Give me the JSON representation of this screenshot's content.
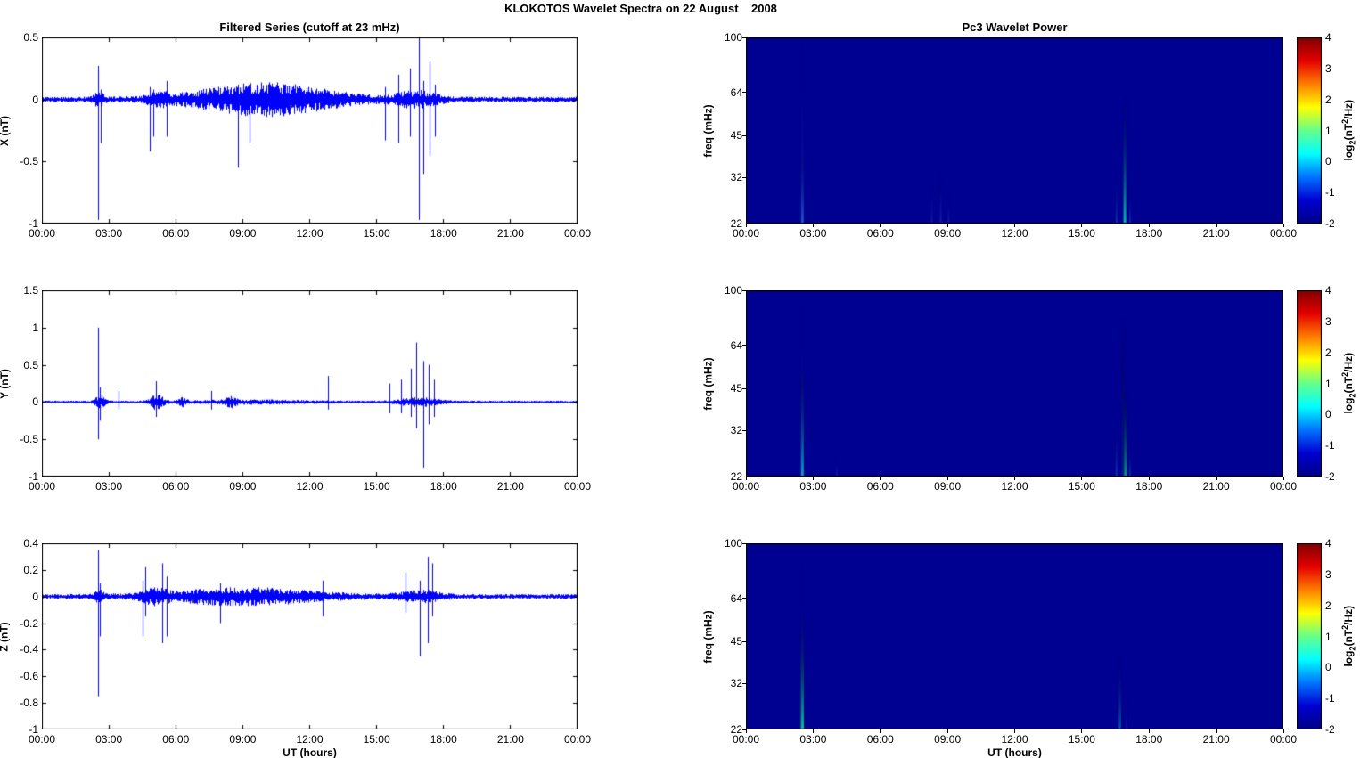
{
  "figure": {
    "title": "KLOKOTOS Wavelet Spectra on 22 August    2008",
    "xlabel": "UT (hours)",
    "colorbar_label": {
      "fn": "log",
      "sub": "2",
      "open": "(nT",
      "sup": "2",
      "close": "/Hz)"
    },
    "line_color": "#0000ff",
    "heatmap_background": "#000091"
  },
  "chart_data": [
    {
      "type": "line",
      "title": "Filtered Series (cutoff at 23 mHz)",
      "ylabel": "X (nT)",
      "ylim": [
        -1,
        0.5
      ],
      "yticks": [
        "0.5",
        "0",
        "-0.5",
        "-1"
      ],
      "xticks": [
        "00:00",
        "03:00",
        "06:00",
        "09:00",
        "12:00",
        "15:00",
        "18:00",
        "21:00",
        "00:00"
      ],
      "x_range_hours": [
        0,
        24
      ],
      "line_color": "#0000ff",
      "noise_base": 0.022,
      "bursts": [
        {
          "t0": 5.2,
          "t1": 13.8,
          "peak": 10.0,
          "amp": 0.12
        },
        {
          "t0": 15.3,
          "t1": 17.9,
          "peak": 16.8,
          "amp": 0.055
        },
        {
          "t0": 2.3,
          "t1": 2.9,
          "peak": 2.55,
          "amp": 0.05
        },
        {
          "t0": 4.6,
          "t1": 5.9,
          "peak": 5.2,
          "amp": 0.04
        }
      ],
      "spikes": [
        {
          "t": 2.52,
          "up": 0.27,
          "down": -0.97
        },
        {
          "t": 2.62,
          "up": 0.08,
          "down": -0.35
        },
        {
          "t": 4.85,
          "up": 0.1,
          "down": -0.42
        },
        {
          "t": 5.0,
          "up": 0.08,
          "down": -0.3
        },
        {
          "t": 5.6,
          "up": 0.15,
          "down": -0.3
        },
        {
          "t": 8.8,
          "up": 0.12,
          "down": -0.55
        },
        {
          "t": 9.3,
          "up": 0.1,
          "down": -0.35
        },
        {
          "t": 15.4,
          "up": 0.1,
          "down": -0.33
        },
        {
          "t": 16.0,
          "up": 0.2,
          "down": -0.35
        },
        {
          "t": 16.5,
          "up": 0.25,
          "down": -0.3
        },
        {
          "t": 16.92,
          "up": 0.5,
          "down": -0.97
        },
        {
          "t": 17.1,
          "up": 0.15,
          "down": -0.6
        },
        {
          "t": 17.4,
          "up": 0.3,
          "down": -0.45
        },
        {
          "t": 17.65,
          "up": 0.12,
          "down": -0.3
        }
      ]
    },
    {
      "type": "heatmap",
      "title": "Pc3 Wavelet Power",
      "ylabel": "freq (mHz)",
      "ylim": [
        22,
        100
      ],
      "yscale": "log2",
      "yticks": [
        "100",
        "64",
        "45",
        "32",
        "22"
      ],
      "xticks": [
        "00:00",
        "03:00",
        "06:00",
        "09:00",
        "12:00",
        "15:00",
        "18:00",
        "21:00",
        "00:00"
      ],
      "x_range_hours": [
        0,
        24
      ],
      "background_value": -2,
      "background_color": "#000091",
      "colorbar": {
        "range": [
          -2,
          4
        ],
        "ticks": [
          "4",
          "3",
          "2",
          "1",
          "0",
          "-1",
          "-2"
        ],
        "colors": [
          "#800000",
          "#e40000",
          "#ff7d00",
          "#ffff00",
          "#66ff8c",
          "#00ffff",
          "#0073ff",
          "#0000d0",
          "#000085"
        ]
      },
      "streaks": [
        {
          "t": 2.52,
          "f_top": 95,
          "color": "#2060ff",
          "alpha": 0.28,
          "w": 1.5
        },
        {
          "t": 2.52,
          "f_top": 40,
          "color": "#30a0ff",
          "alpha": 0.45,
          "w": 1.5
        },
        {
          "t": 8.3,
          "f_top": 30,
          "color": "#2060ff",
          "alpha": 0.3,
          "w": 1
        },
        {
          "t": 8.7,
          "f_top": 33,
          "color": "#2060ff",
          "alpha": 0.35,
          "w": 1
        },
        {
          "t": 9.05,
          "f_top": 28,
          "color": "#2060ff",
          "alpha": 0.3,
          "w": 1
        },
        {
          "t": 16.55,
          "f_top": 33,
          "color": "#2080ff",
          "alpha": 0.4,
          "w": 1
        },
        {
          "t": 16.92,
          "f_top": 62,
          "color": "#00e0b0",
          "alpha": 0.85,
          "w": 1.5
        },
        {
          "t": 17.15,
          "f_top": 30,
          "color": "#2080ff",
          "alpha": 0.35,
          "w": 1
        }
      ]
    },
    {
      "type": "line",
      "ylabel": "Y (nT)",
      "ylim": [
        -1,
        1.5
      ],
      "yticks": [
        "1.5",
        "1",
        "0.5",
        "0",
        "-0.5",
        "-1"
      ],
      "xticks": [
        "00:00",
        "03:00",
        "06:00",
        "09:00",
        "12:00",
        "15:00",
        "18:00",
        "21:00",
        "00:00"
      ],
      "x_range_hours": [
        0,
        24
      ],
      "line_color": "#0000ff",
      "noise_base": 0.018,
      "bursts": [
        {
          "t0": 2.3,
          "t1": 2.9,
          "peak": 2.6,
          "amp": 0.08
        },
        {
          "t0": 4.8,
          "t1": 5.6,
          "peak": 5.15,
          "amp": 0.1
        },
        {
          "t0": 6.1,
          "t1": 6.6,
          "peak": 6.3,
          "amp": 0.05
        },
        {
          "t0": 8.2,
          "t1": 8.9,
          "peak": 8.5,
          "amp": 0.055
        },
        {
          "t0": 6.5,
          "t1": 13.2,
          "peak": 9.5,
          "amp": 0.02
        },
        {
          "t0": 15.3,
          "t1": 17.9,
          "peak": 16.9,
          "amp": 0.05
        }
      ],
      "spikes": [
        {
          "t": 2.5,
          "up": 1.0,
          "down": -0.5
        },
        {
          "t": 2.58,
          "up": 0.2,
          "down": -0.25
        },
        {
          "t": 3.45,
          "up": 0.15,
          "down": -0.1
        },
        {
          "t": 5.1,
          "up": 0.28,
          "down": -0.2
        },
        {
          "t": 7.6,
          "up": 0.15,
          "down": -0.1
        },
        {
          "t": 12.85,
          "up": 0.35,
          "down": -0.1
        },
        {
          "t": 15.6,
          "up": 0.25,
          "down": -0.15
        },
        {
          "t": 16.1,
          "up": 0.3,
          "down": -0.15
        },
        {
          "t": 16.55,
          "up": 0.45,
          "down": -0.2
        },
        {
          "t": 16.8,
          "up": 0.8,
          "down": -0.35
        },
        {
          "t": 17.1,
          "up": 0.55,
          "down": -0.88
        },
        {
          "t": 17.35,
          "up": 0.5,
          "down": -0.3
        },
        {
          "t": 17.6,
          "up": 0.3,
          "down": -0.2
        }
      ]
    },
    {
      "type": "heatmap",
      "ylabel": "freq (mHz)",
      "ylim": [
        22,
        100
      ],
      "yscale": "log2",
      "yticks": [
        "100",
        "64",
        "45",
        "32",
        "22"
      ],
      "xticks": [
        "00:00",
        "03:00",
        "06:00",
        "09:00",
        "12:00",
        "15:00",
        "18:00",
        "21:00",
        "00:00"
      ],
      "x_range_hours": [
        0,
        24
      ],
      "background_value": -2,
      "background_color": "#000091",
      "colorbar": {
        "range": [
          -2,
          4
        ],
        "ticks": [
          "4",
          "3",
          "2",
          "1",
          "0",
          "-1",
          "-2"
        ],
        "colors": [
          "#800000",
          "#e40000",
          "#ff7d00",
          "#ffff00",
          "#66ff8c",
          "#00ffff",
          "#0073ff",
          "#0000d0",
          "#000085"
        ]
      },
      "streaks": [
        {
          "t": 2.52,
          "f_top": 90,
          "color": "#2060ff",
          "alpha": 0.32,
          "w": 1.5
        },
        {
          "t": 2.52,
          "f_top": 55,
          "color": "#00d0d0",
          "alpha": 0.75,
          "w": 1.5
        },
        {
          "t": 4.05,
          "f_top": 26,
          "color": "#2060ff",
          "alpha": 0.3,
          "w": 1
        },
        {
          "t": 16.55,
          "f_top": 35,
          "color": "#2080ff",
          "alpha": 0.4,
          "w": 1
        },
        {
          "t": 16.85,
          "f_top": 80,
          "color": "#102a80",
          "alpha": 0.55,
          "w": 2
        },
        {
          "t": 16.95,
          "f_top": 45,
          "color": "#00c080",
          "alpha": 0.8,
          "w": 1.5
        },
        {
          "t": 17.15,
          "f_top": 30,
          "color": "#2080ff",
          "alpha": 0.35,
          "w": 1
        }
      ]
    },
    {
      "type": "line",
      "ylabel": "Z (nT)",
      "ylim": [
        -1,
        0.4
      ],
      "yticks": [
        "0.4",
        "0.2",
        "0",
        "-0.2",
        "-0.4",
        "-0.6",
        "-0.8",
        "-1"
      ],
      "xticks": [
        "00:00",
        "03:00",
        "06:00",
        "09:00",
        "12:00",
        "15:00",
        "18:00",
        "21:00",
        "00:00"
      ],
      "x_range_hours": [
        0,
        24
      ],
      "line_color": "#0000ff",
      "noise_base": 0.018,
      "bursts": [
        {
          "t0": 4.3,
          "t1": 13.8,
          "peak": 9.0,
          "amp": 0.055
        },
        {
          "t0": 2.3,
          "t1": 2.8,
          "peak": 2.55,
          "amp": 0.04
        },
        {
          "t0": 15.5,
          "t1": 18.0,
          "peak": 17.0,
          "amp": 0.035
        },
        {
          "t0": 4.4,
          "t1": 5.9,
          "peak": 5.0,
          "amp": 0.04
        }
      ],
      "spikes": [
        {
          "t": 2.5,
          "up": 0.35,
          "down": -0.75
        },
        {
          "t": 2.6,
          "up": 0.1,
          "down": -0.3
        },
        {
          "t": 4.5,
          "up": 0.12,
          "down": -0.3
        },
        {
          "t": 4.65,
          "up": 0.22,
          "down": -0.15
        },
        {
          "t": 5.4,
          "up": 0.25,
          "down": -0.35
        },
        {
          "t": 5.6,
          "up": 0.15,
          "down": -0.3
        },
        {
          "t": 8.0,
          "up": 0.1,
          "down": -0.2
        },
        {
          "t": 12.6,
          "up": 0.12,
          "down": -0.15
        },
        {
          "t": 16.3,
          "up": 0.18,
          "down": -0.12
        },
        {
          "t": 16.95,
          "up": 0.12,
          "down": -0.45
        },
        {
          "t": 17.3,
          "up": 0.3,
          "down": -0.35
        },
        {
          "t": 17.5,
          "up": 0.25,
          "down": -0.15
        }
      ]
    },
    {
      "type": "heatmap",
      "ylabel": "freq (mHz)",
      "ylim": [
        22,
        100
      ],
      "yscale": "log2",
      "yticks": [
        "100",
        "64",
        "45",
        "32",
        "22"
      ],
      "xticks": [
        "00:00",
        "03:00",
        "06:00",
        "09:00",
        "12:00",
        "15:00",
        "18:00",
        "21:00",
        "00:00"
      ],
      "x_range_hours": [
        0,
        24
      ],
      "background_value": -2,
      "background_color": "#000091",
      "colorbar": {
        "range": [
          -2,
          4
        ],
        "ticks": [
          "4",
          "3",
          "2",
          "1",
          "0",
          "-1",
          "-2"
        ],
        "colors": [
          "#800000",
          "#e40000",
          "#ff7d00",
          "#ffff00",
          "#66ff8c",
          "#00ffff",
          "#0073ff",
          "#0000d0",
          "#000085"
        ]
      },
      "streaks": [
        {
          "t": 2.52,
          "f_top": 85,
          "color": "#2060ff",
          "alpha": 0.32,
          "w": 1.5
        },
        {
          "t": 2.52,
          "f_top": 55,
          "color": "#00e090",
          "alpha": 0.85,
          "w": 1.7
        },
        {
          "t": 16.7,
          "f_top": 40,
          "color": "#00c0c0",
          "alpha": 0.5,
          "w": 1.2
        },
        {
          "t": 17.0,
          "f_top": 28,
          "color": "#2060ff",
          "alpha": 0.3,
          "w": 1
        }
      ]
    }
  ]
}
